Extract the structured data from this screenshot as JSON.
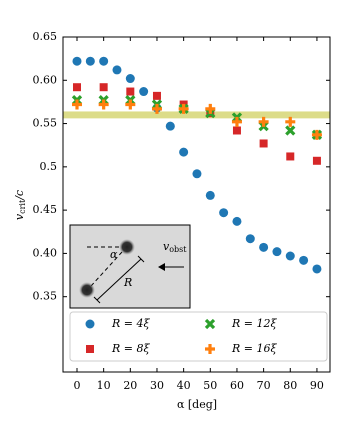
{
  "chart_data": {
    "type": "scatter",
    "ylabel_parts": [
      "v",
      "crit",
      "/c"
    ],
    "xlabel": "α [deg]",
    "xlim": [
      -5.25,
      94.9
    ],
    "ylim": [
      0.263,
      0.65
    ],
    "xticks": [
      0,
      10,
      20,
      30,
      40,
      50,
      60,
      70,
      80,
      90
    ],
    "yticks": [
      0.35,
      {
        "value": 0.4,
        "label": "0.40"
      },
      0.45,
      0.5,
      0.55,
      {
        "value": 0.6,
        "label": "0.60"
      },
      0.65
    ],
    "band": [
      0.556,
      0.564
    ],
    "band_color": "#c9c94a",
    "inset_labels": [
      "α",
      "R",
      "v",
      "obst"
    ],
    "series": [
      {
        "name": "R = 4ξ",
        "color": "#1f77b4",
        "marker": "circle",
        "x": [
          0,
          5,
          10,
          15,
          20,
          25,
          30,
          35,
          40,
          45,
          50,
          55,
          60,
          65,
          70,
          75,
          80,
          85,
          90
        ],
        "values": [
          0.622,
          0.622,
          0.622,
          0.612,
          0.602,
          0.587,
          0.568,
          0.547,
          0.517,
          0.492,
          0.467,
          0.447,
          0.437,
          0.417,
          0.407,
          0.402,
          0.397,
          0.392,
          0.382
        ]
      },
      {
        "name": "R = 8ξ",
        "color": "#d62728",
        "marker": "square",
        "x": [
          0,
          10,
          20,
          30,
          40,
          50,
          60,
          70,
          80,
          90
        ],
        "values": [
          0.592,
          0.592,
          0.587,
          0.582,
          0.572,
          0.562,
          0.542,
          0.527,
          0.512,
          0.507
        ]
      },
      {
        "name": "R = 12ξ",
        "color": "#2ca02c",
        "marker": "x",
        "x": [
          0,
          10,
          20,
          30,
          40,
          50,
          60,
          70,
          80,
          90
        ],
        "values": [
          0.577,
          0.577,
          0.577,
          0.572,
          0.567,
          0.562,
          0.557,
          0.547,
          0.542,
          0.537
        ]
      },
      {
        "name": "R = 16ξ",
        "color": "#ff7f0e",
        "marker": "plus",
        "x": [
          0,
          10,
          20,
          30,
          40,
          50,
          60,
          70,
          80,
          90
        ],
        "values": [
          0.572,
          0.572,
          0.572,
          0.567,
          0.567,
          0.567,
          0.552,
          0.552,
          0.552,
          0.537
        ]
      }
    ]
  }
}
